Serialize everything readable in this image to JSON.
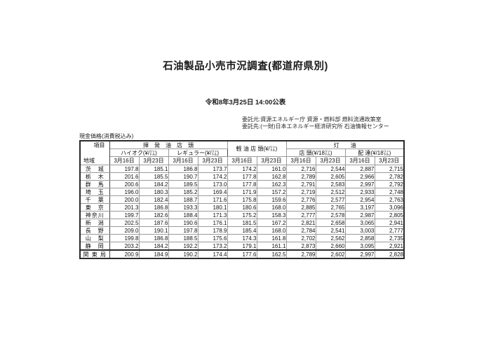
{
  "page": {
    "title": "石油製品小売市況調査(都道府県別)",
    "published": "令和8年3月25日 14:00公表",
    "commission_from": "委託元:資源エネルギー庁 資源・燃料部 燃料流通政策室",
    "commission_to": "委託先:(一財)日本エネルギー経済研究所  石油情報センター",
    "price_note": "現金価格(消費税込み)"
  },
  "table": {
    "corner": {
      "item": "項目",
      "region": "地域"
    },
    "groups": {
      "gasoline": "揮　発　油　店　頭",
      "diesel": "軽 油 店 頭(¥/㍑)",
      "kerosene": "灯　　油"
    },
    "subgroups": {
      "hioct": "ハイオク(¥/㍑)",
      "regular": "レギュラー(¥/㍑)",
      "store": "店 頭(¥/18㍑)",
      "delivery": "配 達(¥/18㍑)"
    },
    "date_headers": [
      "3月16日",
      "3月23日",
      "3月16日",
      "3月23日",
      "3月16日",
      "3月23日",
      "3月16日",
      "3月23日",
      "3月16日",
      "3月23日"
    ],
    "rows": [
      {
        "name": "茨　城",
        "values": [
          "197.8",
          "185.1",
          "186.8",
          "173.7",
          "174.2",
          "161.0",
          "2,716",
          "2,544",
          "2,887",
          "2,715"
        ]
      },
      {
        "name": "栃　木",
        "values": [
          "201.6",
          "185.5",
          "190.7",
          "174.2",
          "177.8",
          "162.8",
          "2,789",
          "2,605",
          "2,966",
          "2,782"
        ]
      },
      {
        "name": "群　馬",
        "values": [
          "200.6",
          "184.2",
          "189.5",
          "173.0",
          "177.8",
          "162.3",
          "2,791",
          "2,583",
          "2,997",
          "2,792"
        ]
      },
      {
        "name": "埼　玉",
        "values": [
          "196.0",
          "180.3",
          "185.2",
          "169.4",
          "171.9",
          "157.2",
          "2,719",
          "2,512",
          "2,933",
          "2,748"
        ]
      },
      {
        "name": "千　葉",
        "values": [
          "200.0",
          "182.4",
          "188.7",
          "171.6",
          "175.8",
          "159.6",
          "2,776",
          "2,577",
          "2,954",
          "2,763"
        ]
      },
      {
        "name": "東　京",
        "values": [
          "201.3",
          "186.8",
          "193.3",
          "180.1",
          "180.6",
          "168.0",
          "2,885",
          "2,765",
          "3,197",
          "3,096"
        ]
      },
      {
        "name": "神奈川",
        "values": [
          "199.7",
          "182.6",
          "188.4",
          "171.3",
          "175.2",
          "158.3",
          "2,777",
          "2,578",
          "2,987",
          "2,805"
        ]
      },
      {
        "name": "新　潟",
        "values": [
          "202.5",
          "187.6",
          "190.6",
          "176.1",
          "181.5",
          "167.2",
          "2,821",
          "2,658",
          "3,065",
          "2,941"
        ]
      },
      {
        "name": "長　野",
        "values": [
          "209.0",
          "190.1",
          "197.8",
          "178.9",
          "185.4",
          "168.0",
          "2,784",
          "2,541",
          "3,003",
          "2,777"
        ]
      },
      {
        "name": "山　梨",
        "values": [
          "199.8",
          "186.8",
          "188.5",
          "175.6",
          "174.3",
          "161.8",
          "2,702",
          "2,562",
          "2,858",
          "2,735"
        ]
      },
      {
        "name": "静　岡",
        "values": [
          "203.2",
          "184.2",
          "192.2",
          "173.2",
          "179.1",
          "161.1",
          "2,873",
          "2,660",
          "3,095",
          "2,921"
        ]
      },
      {
        "name": "関 東 局",
        "values": [
          "200.9",
          "184.9",
          "190.2",
          "174.4",
          "177.6",
          "162.5",
          "2,789",
          "2,602",
          "2,997",
          "2,828"
        ],
        "is_total": true
      }
    ]
  }
}
